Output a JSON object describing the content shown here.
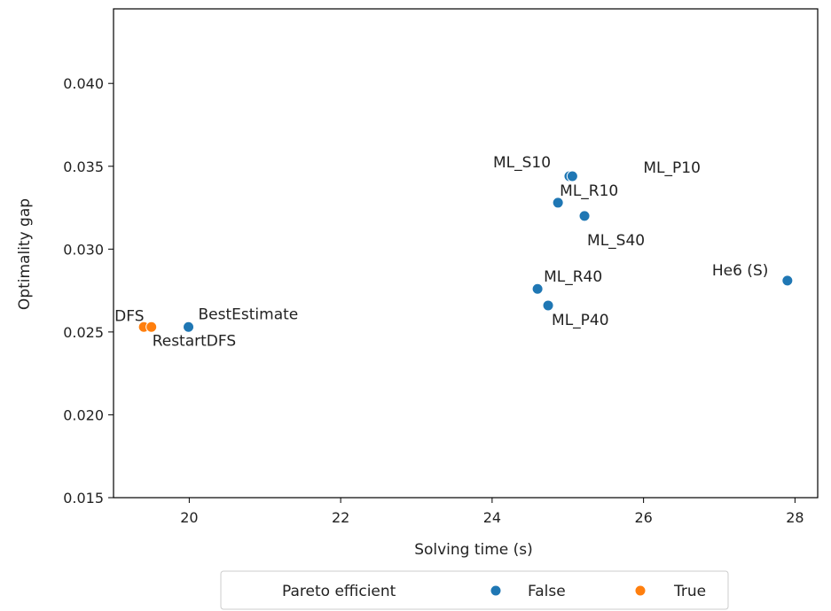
{
  "chart_data": {
    "type": "scatter",
    "title": "",
    "xlabel": "Solving time (s)",
    "ylabel": "Optimality gap",
    "xlim": [
      19.0,
      28.3
    ],
    "ylim": [
      0.015,
      0.0445
    ],
    "xticks": [
      20,
      22,
      24,
      26,
      28
    ],
    "yticks": [
      0.015,
      0.02,
      0.025,
      0.03,
      0.035,
      0.04
    ],
    "grid": false,
    "legend": {
      "title": "Pareto efficient",
      "placement": "below",
      "entries": [
        {
          "label": "False",
          "color": "#1f77b4"
        },
        {
          "label": "True",
          "color": "#ff7f0e"
        }
      ]
    },
    "points": [
      {
        "label": "DFS",
        "x": 19.4,
        "y": 0.0253,
        "pareto": "True"
      },
      {
        "label": "RestartDFS",
        "x": 19.5,
        "y": 0.0253,
        "pareto": "True"
      },
      {
        "label": "BestEstimate",
        "x": 19.99,
        "y": 0.0253,
        "pareto": "False"
      },
      {
        "label": "ML_S10",
        "x": 25.02,
        "y": 0.0344,
        "pareto": "False"
      },
      {
        "label": "ML_P10",
        "x": 25.06,
        "y": 0.0344,
        "pareto": "False"
      },
      {
        "label": "ML_R10",
        "x": 24.87,
        "y": 0.0328,
        "pareto": "False"
      },
      {
        "label": "ML_S40",
        "x": 25.22,
        "y": 0.032,
        "pareto": "False"
      },
      {
        "label": "He6 (S)",
        "x": 27.9,
        "y": 0.0281,
        "pareto": "False"
      },
      {
        "label": "ML_R40",
        "x": 24.6,
        "y": 0.0276,
        "pareto": "False"
      },
      {
        "label": "ML_P40",
        "x": 24.74,
        "y": 0.0266,
        "pareto": "False"
      }
    ]
  }
}
